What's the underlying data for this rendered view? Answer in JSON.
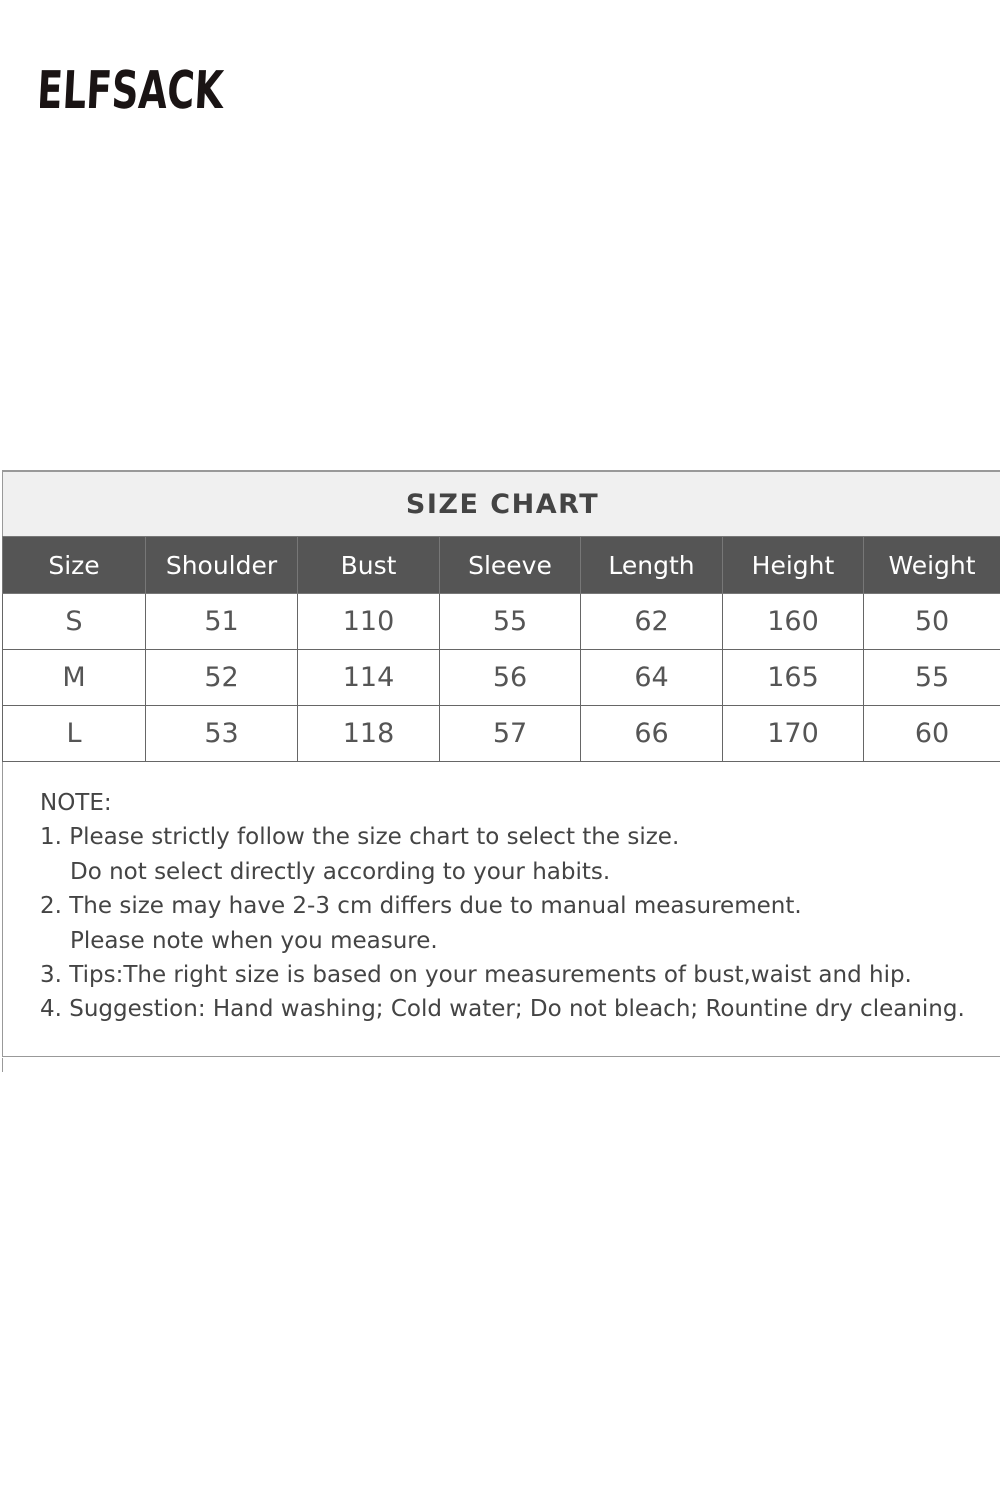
{
  "brand": {
    "logo_text": "ELFSACK"
  },
  "size_chart": {
    "title": "SIZE CHART",
    "columns": [
      "Size",
      "Shoulder",
      "Bust",
      "Sleeve",
      "Length",
      "Height",
      "Weight"
    ],
    "rows": [
      [
        "S",
        "51",
        "110",
        "55",
        "62",
        "160",
        "50"
      ],
      [
        "M",
        "52",
        "114",
        "56",
        "64",
        "165",
        "55"
      ],
      [
        "L",
        "53",
        "118",
        "57",
        "66",
        "170",
        "60"
      ]
    ]
  },
  "notes": {
    "heading": "NOTE:",
    "lines": [
      "1. Please strictly follow the size chart to select the size.",
      "Do not select directly according to your habits.",
      "2. The size may have 2-3 cm differs due to manual measurement.",
      "Please note when you measure.",
      "3. Tips:The right size is based on your measurements of bust,waist and hip.",
      "4. Suggestion: Hand washing; Cold water; Do not bleach; Rountine dry cleaning."
    ]
  }
}
